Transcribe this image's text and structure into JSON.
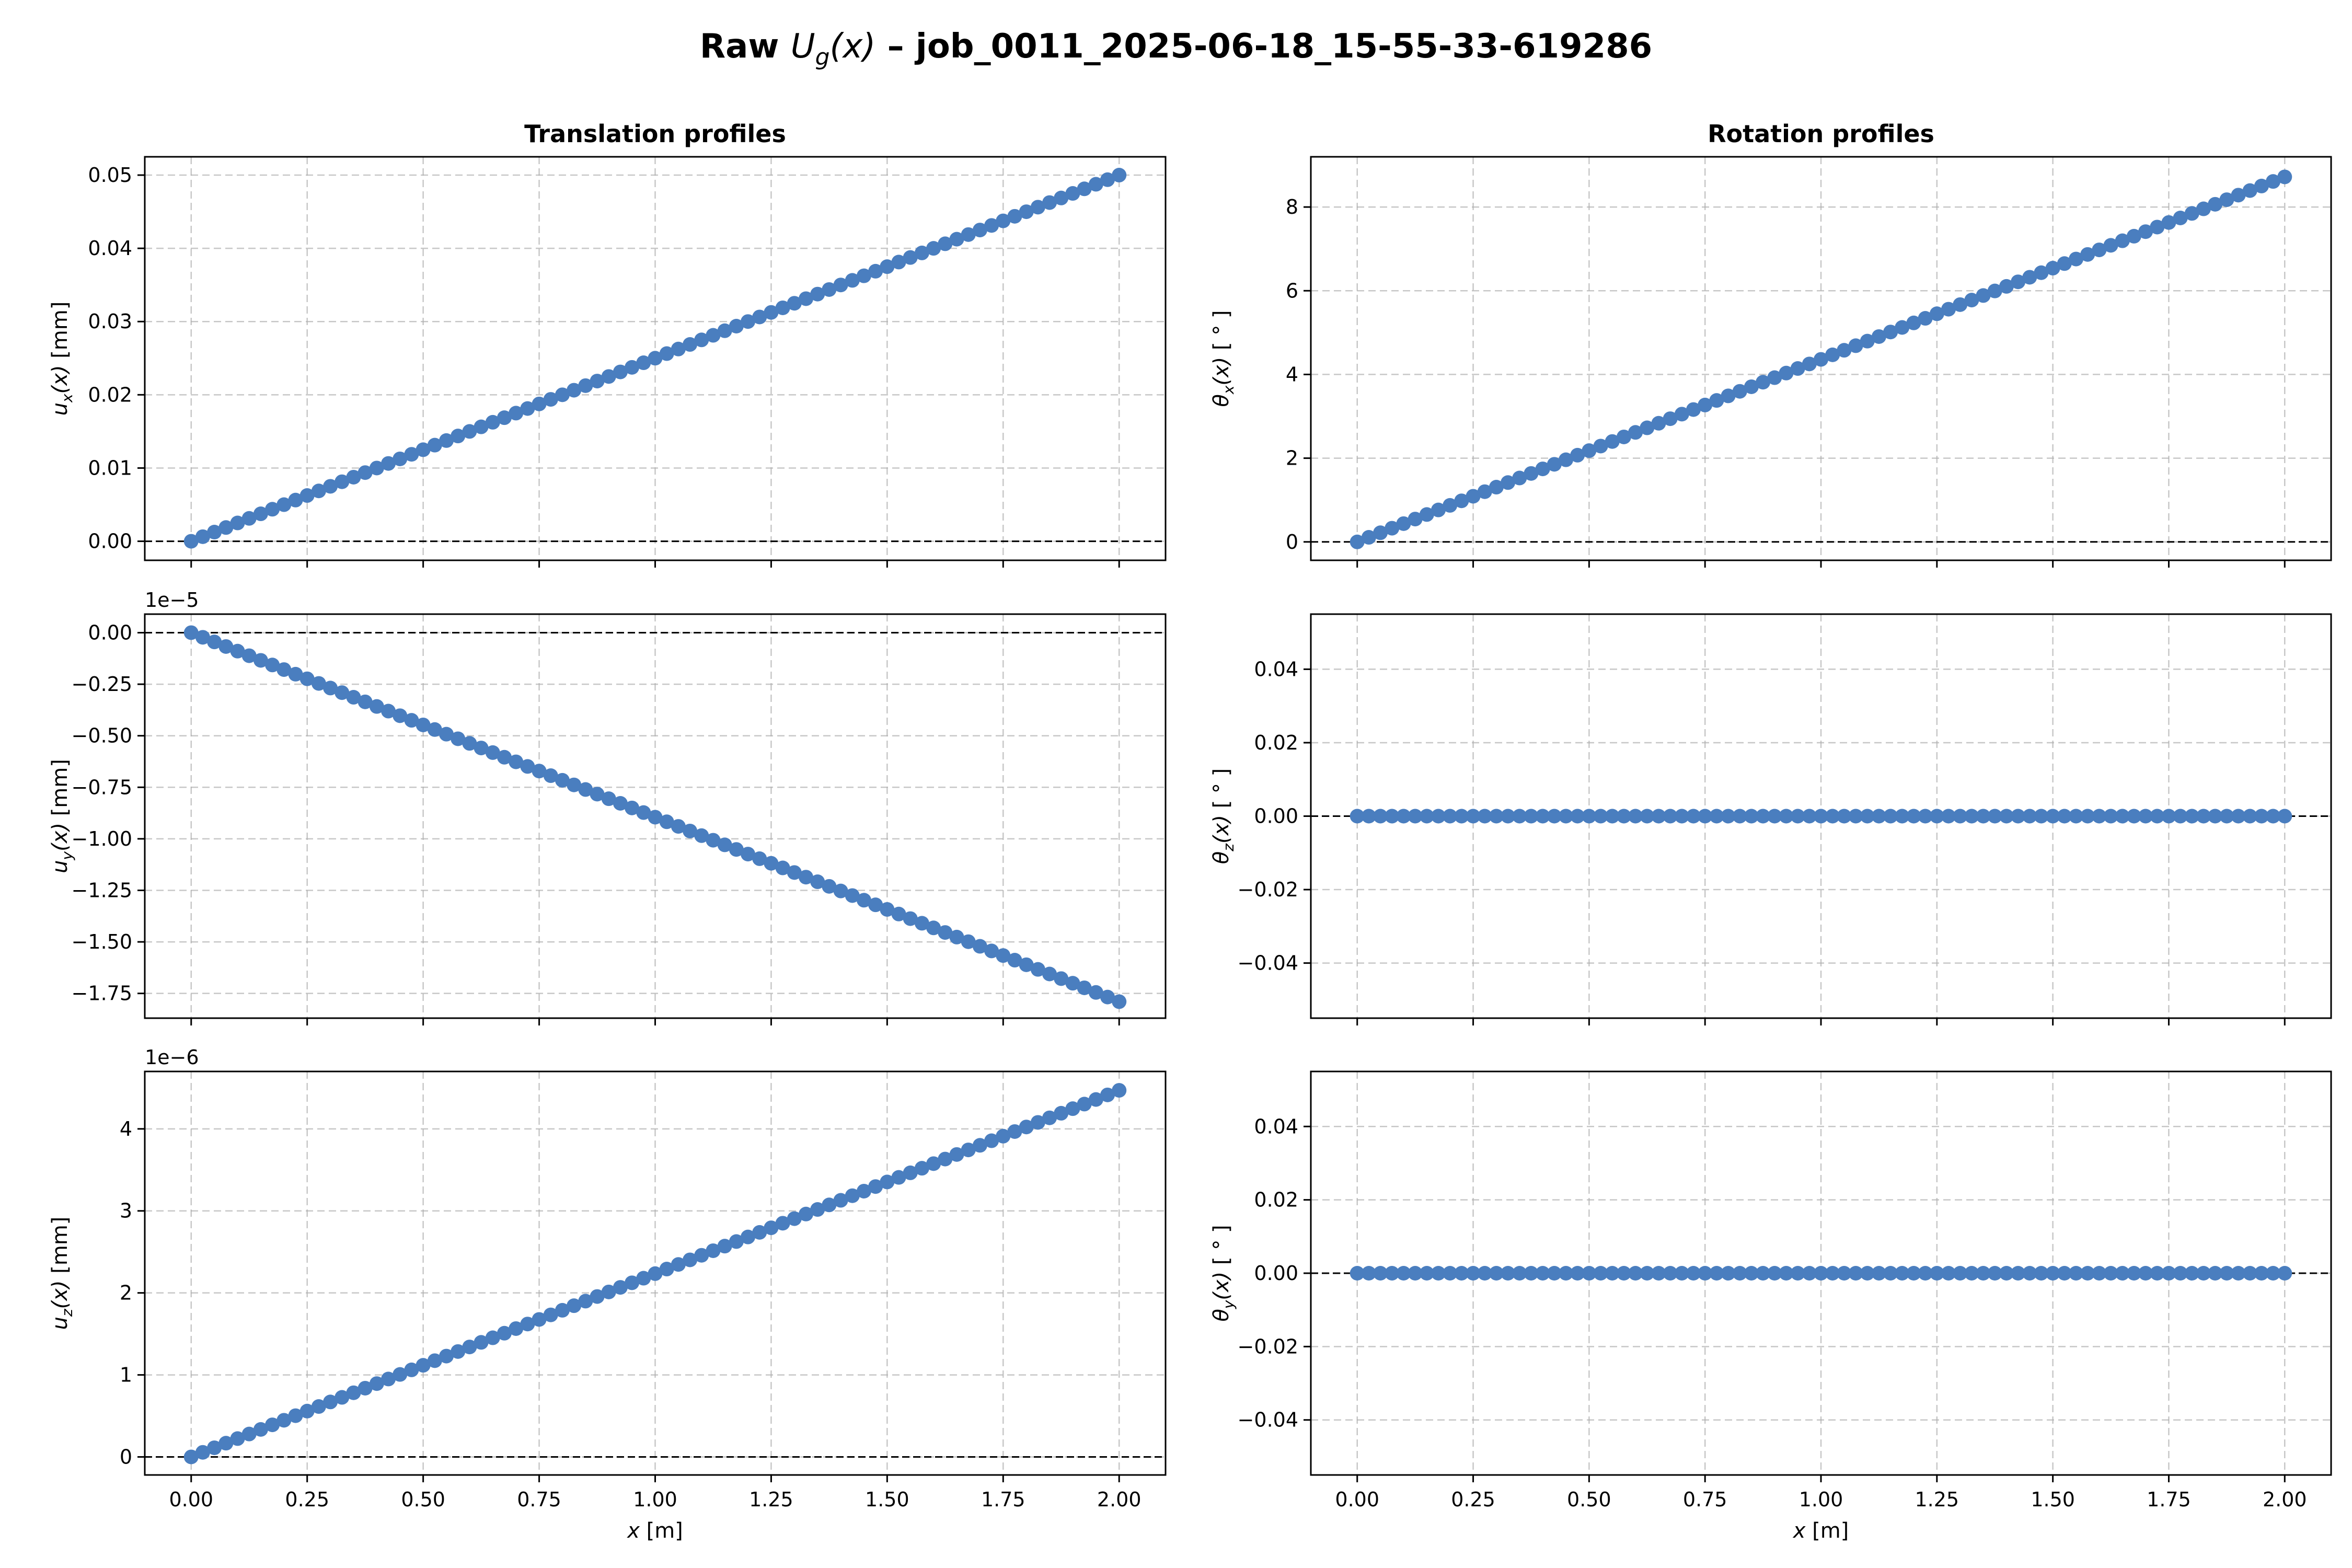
{
  "figure": {
    "title_prefix": "Raw ",
    "title_symbol": "U",
    "title_subscript": "g",
    "title_arg": "(x)",
    "title_suffix": " – job_0011_2025-06-18_15-55-33-619286"
  },
  "colors": {
    "series": "#4a7ebf",
    "zero_line": "#000000",
    "grid": "#b0b0b0"
  },
  "chart_data": [
    {
      "type": "scatter",
      "column": "left",
      "row": 0,
      "title": "Translation profiles",
      "ylabel": {
        "sym": "u",
        "sub": "x",
        "arg": "(x)",
        "unit": " [mm]"
      },
      "xlabel": null,
      "offset_text": "",
      "xlim": [
        -0.1,
        2.1
      ],
      "ylim": [
        -0.0026,
        0.0525
      ],
      "x_ticks": [
        0,
        0.25,
        0.5,
        0.75,
        1.0,
        1.25,
        1.5,
        1.75,
        2.0
      ],
      "x_tick_labels": [
        "0.00",
        "0.25",
        "0.50",
        "0.75",
        "1.00",
        "1.25",
        "1.50",
        "1.75",
        "2.00"
      ],
      "show_x_tick_labels": false,
      "y_ticks": [
        0,
        0.01,
        0.02,
        0.03,
        0.04,
        0.05
      ],
      "y_tick_labels": [
        "0.00",
        "0.01",
        "0.02",
        "0.03",
        "0.04",
        "0.05"
      ],
      "series": {
        "x_start": 0,
        "x_end": 2,
        "n_points": 81,
        "y_start": 0,
        "y_end": 0.05
      },
      "grid": true,
      "zero_line": true
    },
    {
      "type": "scatter",
      "column": "right",
      "row": 0,
      "title": "Rotation profiles",
      "ylabel": {
        "sym": "θ",
        "sub": "x",
        "arg": "(x)",
        "unit": " [ ° ]"
      },
      "xlabel": null,
      "offset_text": "",
      "xlim": [
        -0.1,
        2.1
      ],
      "ylim": [
        -0.44,
        9.2
      ],
      "x_ticks": [
        0,
        0.25,
        0.5,
        0.75,
        1.0,
        1.25,
        1.5,
        1.75,
        2.0
      ],
      "x_tick_labels": [
        "0.00",
        "0.25",
        "0.50",
        "0.75",
        "1.00",
        "1.25",
        "1.50",
        "1.75",
        "2.00"
      ],
      "show_x_tick_labels": false,
      "y_ticks": [
        0,
        2,
        4,
        6,
        8
      ],
      "y_tick_labels": [
        "0",
        "2",
        "4",
        "6",
        "8"
      ],
      "series": {
        "x_start": 0,
        "x_end": 2,
        "n_points": 81,
        "y_start": 0,
        "y_end": 8.72
      },
      "grid": true,
      "zero_line": true
    },
    {
      "type": "scatter",
      "column": "left",
      "row": 1,
      "title": "",
      "ylabel": {
        "sym": "u",
        "sub": "y",
        "arg": "(x)",
        "unit": " [mm]"
      },
      "xlabel": null,
      "offset_text": "1e−5",
      "xlim": [
        -0.1,
        2.1
      ],
      "ylim": [
        -1.87,
        0.09
      ],
      "x_ticks": [
        0,
        0.25,
        0.5,
        0.75,
        1.0,
        1.25,
        1.5,
        1.75,
        2.0
      ],
      "x_tick_labels": [
        "0.00",
        "0.25",
        "0.50",
        "0.75",
        "1.00",
        "1.25",
        "1.50",
        "1.75",
        "2.00"
      ],
      "show_x_tick_labels": false,
      "y_ticks": [
        0,
        -0.25,
        -0.5,
        -0.75,
        -1.0,
        -1.25,
        -1.5,
        -1.75
      ],
      "y_tick_labels": [
        "0.00",
        "−0.25",
        "−0.50",
        "−0.75",
        "−1.00",
        "−1.25",
        "−1.50",
        "−1.75"
      ],
      "series": {
        "x_start": 0,
        "x_end": 2,
        "n_points": 81,
        "y_start": 0,
        "y_end": -1.79
      },
      "grid": true,
      "zero_line": true
    },
    {
      "type": "scatter",
      "column": "right",
      "row": 1,
      "title": "",
      "ylabel": {
        "sym": "θ",
        "sub": "z",
        "arg": "(x)",
        "unit": " [ ° ]"
      },
      "xlabel": null,
      "offset_text": "",
      "xlim": [
        -0.1,
        2.1
      ],
      "ylim": [
        -0.055,
        0.055
      ],
      "x_ticks": [
        0,
        0.25,
        0.5,
        0.75,
        1.0,
        1.25,
        1.5,
        1.75,
        2.0
      ],
      "x_tick_labels": [
        "0.00",
        "0.25",
        "0.50",
        "0.75",
        "1.00",
        "1.25",
        "1.50",
        "1.75",
        "2.00"
      ],
      "show_x_tick_labels": false,
      "y_ticks": [
        -0.04,
        -0.02,
        0,
        0.02,
        0.04
      ],
      "y_tick_labels": [
        "−0.04",
        "−0.02",
        "0.00",
        "0.02",
        "0.04"
      ],
      "series": {
        "x_start": 0,
        "x_end": 2,
        "n_points": 81,
        "y_start": 0,
        "y_end": 0
      },
      "grid": true,
      "zero_line": true
    },
    {
      "type": "scatter",
      "column": "left",
      "row": 2,
      "title": "",
      "ylabel": {
        "sym": "u",
        "sub": "z",
        "arg": "(x)",
        "unit": " [mm]"
      },
      "xlabel": {
        "sym": "x",
        "unit": " [m]"
      },
      "offset_text": "1e−6",
      "xlim": [
        -0.1,
        2.1
      ],
      "ylim": [
        -0.22,
        4.7
      ],
      "x_ticks": [
        0,
        0.25,
        0.5,
        0.75,
        1.0,
        1.25,
        1.5,
        1.75,
        2.0
      ],
      "x_tick_labels": [
        "0.00",
        "0.25",
        "0.50",
        "0.75",
        "1.00",
        "1.25",
        "1.50",
        "1.75",
        "2.00"
      ],
      "show_x_tick_labels": true,
      "y_ticks": [
        0,
        1,
        2,
        3,
        4
      ],
      "y_tick_labels": [
        "0",
        "1",
        "2",
        "3",
        "4"
      ],
      "series": {
        "x_start": 0,
        "x_end": 2,
        "n_points": 81,
        "y_start": 0,
        "y_end": 4.47
      },
      "grid": true,
      "zero_line": true
    },
    {
      "type": "scatter",
      "column": "right",
      "row": 2,
      "title": "",
      "ylabel": {
        "sym": "θ",
        "sub": "y",
        "arg": "(x)",
        "unit": " [ ° ]"
      },
      "xlabel": {
        "sym": "x",
        "unit": " [m]"
      },
      "offset_text": "",
      "xlim": [
        -0.1,
        2.1
      ],
      "ylim": [
        -0.055,
        0.055
      ],
      "x_ticks": [
        0,
        0.25,
        0.5,
        0.75,
        1.0,
        1.25,
        1.5,
        1.75,
        2.0
      ],
      "x_tick_labels": [
        "0.00",
        "0.25",
        "0.50",
        "0.75",
        "1.00",
        "1.25",
        "1.50",
        "1.75",
        "2.00"
      ],
      "show_x_tick_labels": true,
      "y_ticks": [
        -0.04,
        -0.02,
        0,
        0.02,
        0.04
      ],
      "y_tick_labels": [
        "−0.04",
        "−0.02",
        "0.00",
        "0.02",
        "0.04"
      ],
      "series": {
        "x_start": 0,
        "x_end": 2,
        "n_points": 81,
        "y_start": 0,
        "y_end": 0
      },
      "grid": true,
      "zero_line": true
    }
  ]
}
